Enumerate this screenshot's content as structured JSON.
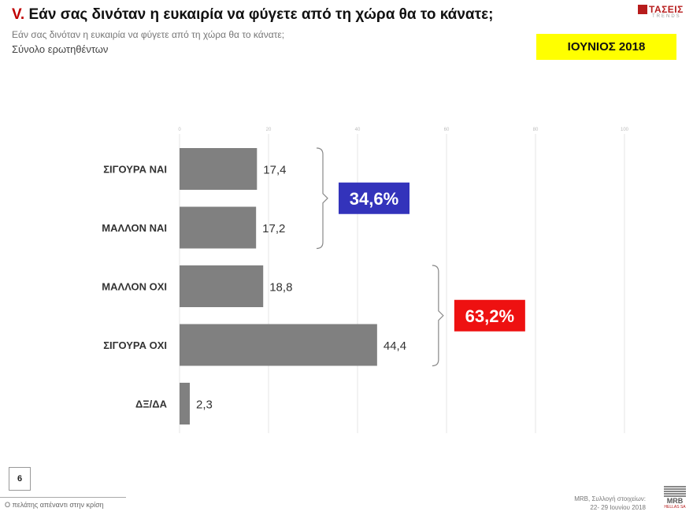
{
  "header": {
    "title_number": "V.",
    "title_text": "Εάν σας δινόταν η ευκαιρία να φύγετε από τη χώρα θα το κάνατε;",
    "subtitle": "Εάν σας δινόταν η ευκαιρία να φύγετε από τη χώρα θα το κάνατε;",
    "base": "Σύνολο ερωτηθέντων",
    "date_badge": "ΙΟΥΝΙΟΣ 2018"
  },
  "brand": {
    "logo_word": "ΤΑΣΕΙΣ",
    "logo_sub": "TRENDS",
    "accent": "#b71c1c"
  },
  "chart_data": {
    "type": "bar",
    "orientation": "horizontal",
    "categories": [
      "ΣΙΓΟΥΡΑ ΝΑΙ",
      "ΜΑΛΛΟΝ ΝΑΙ",
      "ΜΑΛΛΟΝ ΟΧΙ",
      "ΣΙΓΟΥΡΑ ΟΧΙ",
      "ΔΞ/ΔΑ"
    ],
    "values": [
      17.4,
      17.2,
      18.8,
      44.4,
      2.3
    ],
    "value_labels": [
      "17,4",
      "17,2",
      "18,8",
      "44,4",
      "2,3"
    ],
    "xlim": [
      0,
      100
    ],
    "x_ticks": [
      0,
      20,
      40,
      60,
      80,
      100
    ],
    "grid": true,
    "bar_color": "#808080",
    "groups": [
      {
        "label": "34,6%",
        "from": 0,
        "to": 1,
        "color": "#3333bb"
      },
      {
        "label": "63,2%",
        "from": 2,
        "to": 3,
        "color": "#ee1111"
      }
    ]
  },
  "footer": {
    "page_number": "6",
    "footnote": "Ο πελάτης απέναντι στην κρίση",
    "source_line1": "MRB, Συλλογή στοιχείων:",
    "source_line2": "22- 29 Ιουνίου 2018",
    "mrb_logo": "MRB",
    "mrb_sub": "HELLAS SA"
  }
}
